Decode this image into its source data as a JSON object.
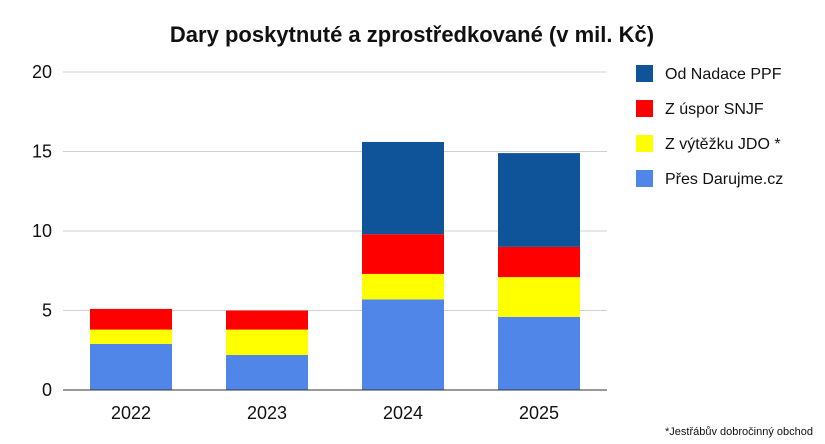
{
  "chart_data": {
    "type": "bar",
    "stacked": true,
    "title": "Dary poskytnuté a zprostředkované (v mil. Kč)",
    "xlabel": "",
    "ylabel": "",
    "categories": [
      "2022",
      "2023",
      "2024",
      "2025"
    ],
    "ylim": [
      0,
      20
    ],
    "yticks": [
      "0",
      "5",
      "10",
      "15",
      "20"
    ],
    "grid": true,
    "legend_position": "right",
    "series": [
      {
        "name": "Přes Darujme.cz",
        "color": "#4f86e8",
        "values": [
          2.9,
          2.2,
          5.7,
          4.6
        ]
      },
      {
        "name": "Z výtěžku JDO *",
        "color": "#ffff00",
        "values": [
          0.9,
          1.6,
          1.6,
          2.5
        ]
      },
      {
        "name": "Z úspor SNJF",
        "color": "#ff0000",
        "values": [
          1.3,
          1.2,
          2.5,
          1.9
        ]
      },
      {
        "name": "Od Nadace PPF",
        "color": "#0f5499",
        "values": [
          0,
          0,
          5.8,
          5.9
        ]
      }
    ],
    "footnote": "*Jestřábův dobročinný obchod"
  }
}
